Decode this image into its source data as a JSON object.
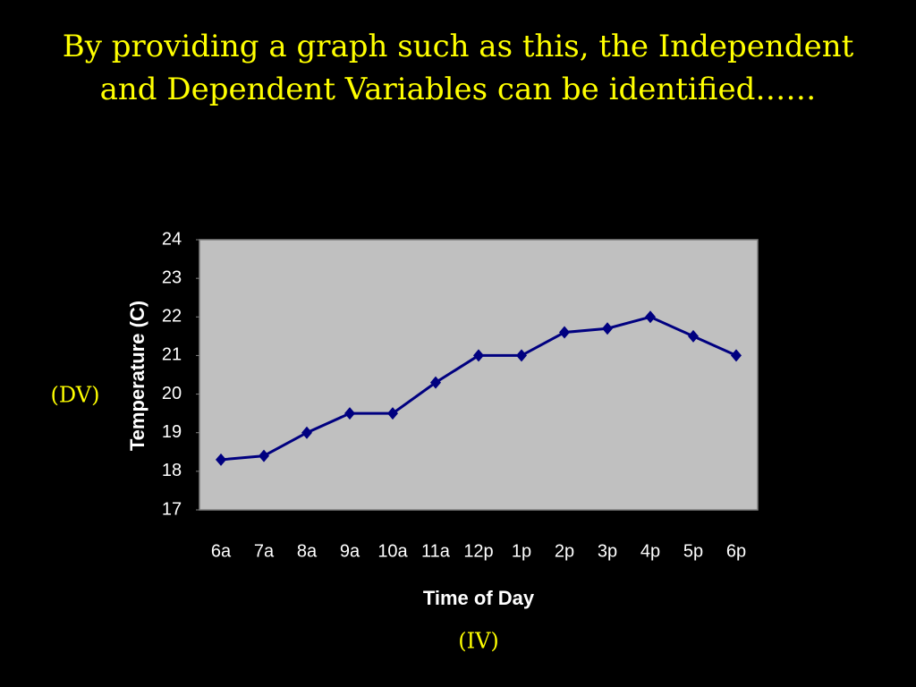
{
  "chart_data": {
    "type": "line",
    "title": "By providing a graph such as this, the Independent and Dependent Variables can be identified……",
    "categories": [
      "6a",
      "7a",
      "8a",
      "9a",
      "10a",
      "11a",
      "12p",
      "1p",
      "2p",
      "3p",
      "4p",
      "5p",
      "6p"
    ],
    "series": [
      {
        "name": "Temperature",
        "color": "#000080",
        "values": [
          18.3,
          18.4,
          19.0,
          19.5,
          19.5,
          20.3,
          21.0,
          21.0,
          21.6,
          21.7,
          22.0,
          21.5,
          21.0
        ]
      }
    ],
    "ylim": [
      17,
      24
    ],
    "yticks": [
      17,
      18,
      19,
      20,
      21,
      22,
      23,
      24
    ],
    "x_label": "Time of Day",
    "y_label": "Temperature (C)",
    "annotations": [
      "(DV)",
      "(IV)"
    ],
    "plot_background": "#c0c0c0",
    "grid": false
  }
}
